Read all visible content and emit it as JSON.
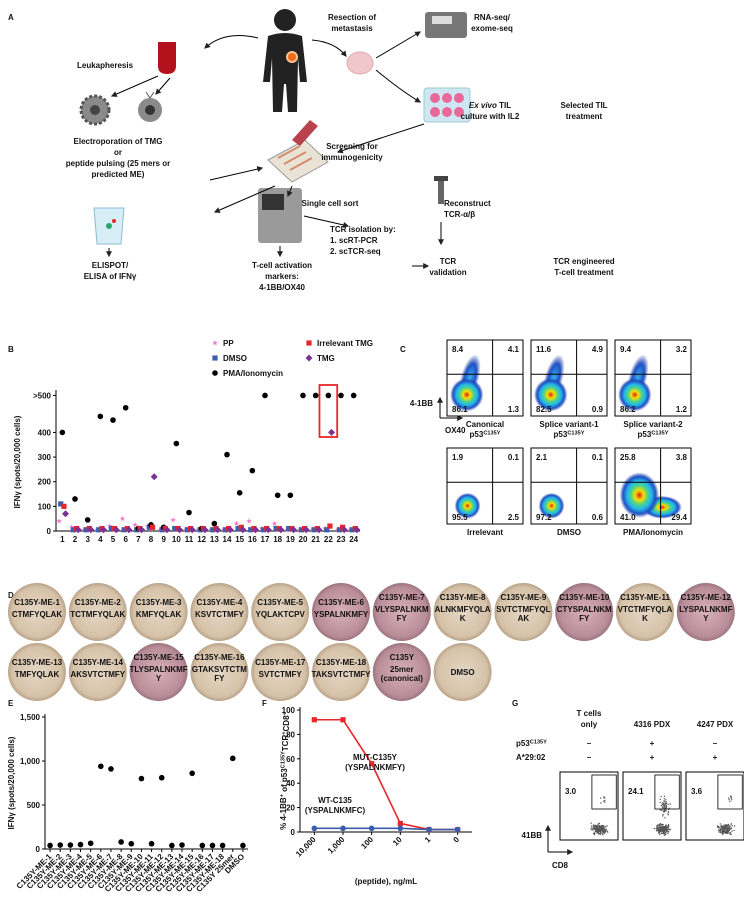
{
  "panel_labels": [
    "A",
    "B",
    "C",
    "D",
    "E",
    "F",
    "G"
  ],
  "diagram": {
    "resection": [
      "Resection of",
      "metastasis"
    ],
    "seq": [
      "RNA-seq/",
      "exome-seq"
    ],
    "leuka": [
      "Leukapheresis"
    ],
    "exvivo": [
      [
        {
          "text": "Ex vivo",
          "italic": true
        },
        {
          "text": " TIL"
        }
      ],
      "culture with IL2"
    ],
    "til_tx": [
      "Selected TIL",
      "treatment"
    ],
    "electro": [
      "Electroporation of TMG",
      "or",
      "peptide pulsing (25 mers or",
      "predicted ME)"
    ],
    "screening": [
      "Screening for",
      "immunogenicity"
    ],
    "sort": [
      "Single cell sort"
    ],
    "reconstruct": [
      "Reconstruct",
      "TCR-α/β"
    ],
    "tcr_iso": [
      "TCR isolation by:",
      "1.  scRT-PCR",
      "2.  scTCR-seq"
    ],
    "validation": [
      "TCR",
      "validation"
    ],
    "tcr_tx": [
      "TCR engineered",
      "T-cell treatment"
    ],
    "elispot": [
      "ELISPOT/",
      "ELISA of IFNγ"
    ],
    "activation": [
      "T-cell activation",
      "markers:",
      "4-1BB/OX40"
    ]
  },
  "chart_data": [
    {
      "type": "scatter",
      "ylabel": "IFNγ (spots/20,000 cells)",
      "categories": [
        "1",
        "2",
        "3",
        "4",
        "5",
        "6",
        "7",
        "8",
        "9",
        "10",
        "11",
        "12",
        "13",
        "14",
        "15",
        "16",
        "17",
        "18",
        "19",
        "20",
        "21",
        "22",
        "23",
        "24"
      ],
      "ylim": [
        0,
        560
      ],
      "yticks": [
        0,
        100,
        200,
        300,
        400,
        {
          "value": 550,
          "label": ">500"
        }
      ],
      "legend": "top",
      "highlight": "22",
      "series": [
        {
          "name": "PP",
          "color": "#ee7cc4",
          "marker": "star",
          "values": [
            40,
            15,
            5,
            5,
            20,
            50,
            25,
            20,
            5,
            45,
            5,
            5,
            5,
            5,
            30,
            40,
            10,
            30,
            5,
            5,
            5,
            10,
            5,
            5
          ]
        },
        {
          "name": "DMSO",
          "color": "#3a5fb0",
          "marker": "square",
          "values": [
            110,
            5,
            5,
            5,
            10,
            5,
            5,
            15,
            5,
            10,
            5,
            5,
            5,
            5,
            10,
            5,
            5,
            10,
            10,
            5,
            5,
            5,
            5,
            5
          ]
        },
        {
          "name": "PMA/Ionomycin",
          "color": "#000000",
          "marker": "circle",
          "values": [
            400,
            130,
            45,
            465,
            450,
            500,
            10,
            25,
            15,
            355,
            75,
            10,
            30,
            310,
            155,
            245,
            550,
            145,
            145,
            550,
            550,
            550,
            550,
            550
          ]
        },
        {
          "name": "Irrelevant TMG",
          "color": "#e8262b",
          "marker": "square",
          "values": [
            100,
            10,
            10,
            10,
            10,
            10,
            10,
            15,
            10,
            10,
            10,
            10,
            10,
            10,
            15,
            10,
            10,
            10,
            10,
            10,
            10,
            20,
            15,
            10
          ]
        },
        {
          "name": "TMG",
          "color": "#7b3294",
          "marker": "diamond",
          "values": [
            70,
            5,
            5,
            5,
            5,
            5,
            5,
            220,
            5,
            5,
            5,
            5,
            5,
            5,
            5,
            5,
            5,
            5,
            5,
            5,
            5,
            400,
            5,
            5
          ]
        }
      ]
    },
    {
      "type": "scatter",
      "ylabel": "IFNγ (spots/20,000 cells)",
      "categories": [
        "C135Y-ME-1",
        "C135Y-ME-2",
        "C135Y-ME-3",
        "C135Y-ME-4",
        "C135Y-ME-5",
        "C135Y-ME-6",
        "C135Y-ME-7",
        "C135Y-ME-8",
        "C135Y-ME-9",
        "C135Y-ME-10",
        "C135Y-ME-11",
        "C135Y-ME-12",
        "C135Y-ME-13",
        "C135Y-ME-14",
        "C135Y-ME-15",
        "C135Y-ME-16",
        "C135Y-ME-17",
        "C135Y-ME-18",
        "C135Y 25mer",
        "DMSO"
      ],
      "values": [
        40,
        45,
        45,
        50,
        65,
        940,
        910,
        80,
        60,
        800,
        60,
        810,
        40,
        45,
        860,
        40,
        40,
        40,
        1030,
        40
      ],
      "color": "#000000",
      "ylim": [
        0,
        1500
      ],
      "yticks": [
        0,
        500,
        {
          "value": 1000,
          "label": "1,000"
        },
        {
          "value": 1500,
          "label": "1,500"
        }
      ]
    },
    {
      "type": "line",
      "ylabel": [
        {
          "text": "% 4-1BB"
        },
        {
          "text": "+",
          "sup": true
        },
        {
          "text": " of p53"
        },
        {
          "text": "C135Y",
          "sup": true
        },
        {
          "text": "TCR"
        },
        {
          "text": "+",
          "sup": true
        },
        {
          "text": "CD8"
        },
        {
          "text": "+",
          "sup": true
        }
      ],
      "xlabel": "(peptide), ng/mL",
      "categories": [
        "10,000",
        "1,000",
        "100",
        "10",
        "1",
        "0"
      ],
      "ylim": [
        0,
        100
      ],
      "yticks": [
        0,
        20,
        40,
        60,
        80,
        100
      ],
      "series": [
        {
          "name": [
            "MUT-C135Y",
            "(YSPALNKMFY)"
          ],
          "color": "#e8262b",
          "marker": "square",
          "values": [
            92,
            92,
            56,
            7,
            2,
            2
          ]
        },
        {
          "name": [
            "WT-C135",
            "(YSPALNKMFC)"
          ],
          "color": "#3b5bab",
          "marker": "circle",
          "values": [
            3,
            3,
            3,
            3,
            2,
            2
          ]
        }
      ]
    }
  ],
  "flow": {
    "yaxis": "4-1BB",
    "xaxis": "OX40",
    "plots": [
      {
        "ul": "8.4",
        "ur": "4.1",
        "ll": "86.1",
        "lr": "1.3",
        "label": [
          [
            {
              "text": "Canonical"
            }
          ],
          [
            {
              "text": "p53"
            },
            {
              "text": "C135Y",
              "sup": true
            }
          ]
        ]
      },
      {
        "ul": "11.6",
        "ur": "4.9",
        "ll": "82.5",
        "lr": "0.9",
        "label": [
          [
            {
              "text": "Splice variant-1"
            }
          ],
          [
            {
              "text": "p53"
            },
            {
              "text": "C135Y",
              "sup": true
            }
          ]
        ]
      },
      {
        "ul": "9.4",
        "ur": "3.2",
        "ll": "86.2",
        "lr": "1.2",
        "label": [
          [
            {
              "text": "Splice variant-2"
            }
          ],
          [
            {
              "text": "p53"
            },
            {
              "text": "C135Y",
              "sup": true
            }
          ]
        ]
      },
      {
        "ul": "1.9",
        "ur": "0.1",
        "ll": "95.5",
        "lr": "2.5",
        "label": [
          [
            {
              "text": "Irrelevant"
            }
          ]
        ]
      },
      {
        "ul": "2.1",
        "ur": "0.1",
        "ll": "97.2",
        "lr": "0.6",
        "label": [
          [
            {
              "text": "DMSO"
            }
          ]
        ]
      },
      {
        "ul": "25.8",
        "ur": "3.8",
        "ll": "41.0",
        "lr": "29.4",
        "label": [
          [
            {
              "text": "PMA/Ionomycin"
            }
          ]
        ]
      }
    ]
  },
  "elispot_wells": [
    {
      "name": "C135Y-ME-1",
      "seq": [
        "CTMFYQLAK"
      ],
      "positive": false
    },
    {
      "name": "C135Y-ME-2",
      "seq": [
        "TCTMFYQLAK"
      ],
      "positive": false
    },
    {
      "name": "C135Y-ME-3",
      "seq": [
        "KMFYQLAK"
      ],
      "positive": false
    },
    {
      "name": "C135Y-ME-4",
      "seq": [
        "KSVTCTMFY"
      ],
      "positive": false
    },
    {
      "name": "C135Y-ME-5",
      "seq": [
        "YQLAKTCPV"
      ],
      "positive": false
    },
    {
      "name": "C135Y-ME-6",
      "seq": [
        "YSPALNKMFY"
      ],
      "positive": true
    },
    {
      "name": "C135Y-ME-7",
      "seq": [
        "VLYSPALNKM",
        "FY"
      ],
      "positive": true
    },
    {
      "name": "C135Y-ME-8",
      "seq": [
        "ALNKMFYQLA",
        "K"
      ],
      "positive": false
    },
    {
      "name": "C135Y-ME-9",
      "seq": [
        "SVTCTMFYQL",
        "AK"
      ],
      "positive": false
    },
    {
      "name": "C135Y-ME-10",
      "seq": [
        "CTYSPALNKM",
        "FY"
      ],
      "positive": true
    },
    {
      "name": "C135Y-ME-11",
      "seq": [
        "VTCTMFYQLA",
        "K"
      ],
      "positive": false
    },
    {
      "name": "C135Y-ME-12",
      "seq": [
        "LYSPALNKMF",
        "Y"
      ],
      "positive": true
    },
    {
      "name": "C135Y-ME-13",
      "seq": [
        "TMFYQLAK"
      ],
      "positive": false
    },
    {
      "name": "C135Y-ME-14",
      "seq": [
        "AKSVTCTMFY"
      ],
      "positive": false
    },
    {
      "name": "C135Y-ME-15",
      "seq": [
        "TLYSPALNKMF",
        "Y"
      ],
      "positive": true
    },
    {
      "name": "C135Y-ME-16",
      "seq": [
        "GTAKSVTCTM",
        "FY"
      ],
      "positive": false
    },
    {
      "name": "C135Y-ME-17",
      "seq": [
        "SVTCTMFY"
      ],
      "positive": false
    },
    {
      "name": "C135Y-ME-18",
      "seq": [
        "TAKSVTCTMFY"
      ],
      "positive": false
    },
    {
      "name": "C135Y",
      "seq": [
        "25mer",
        "(canonical)"
      ],
      "positive": true
    },
    {
      "name": "DMSO",
      "seq": [],
      "positive": false
    }
  ],
  "tetramer": {
    "headers": [
      [
        "T cells",
        "only"
      ],
      [
        "4316 PDX"
      ],
      [
        "4247 PDX"
      ]
    ],
    "rows": [
      {
        "label": [
          {
            "text": "p53"
          },
          {
            "text": "C135Y",
            "sup": true
          }
        ],
        "marks": [
          "–",
          "+",
          "–"
        ]
      },
      {
        "label": [
          {
            "text": "A*29:02"
          }
        ],
        "marks": [
          "–",
          "+",
          "+"
        ]
      }
    ],
    "values": [
      "3.0",
      "24.1",
      "3.6"
    ],
    "yaxis": "41BB",
    "xaxis": "CD8"
  }
}
